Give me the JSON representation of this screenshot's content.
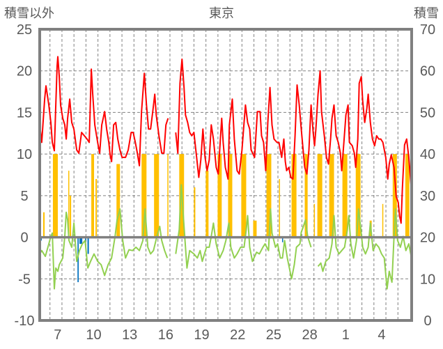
{
  "chart_data": {
    "type": "line",
    "title": "東京",
    "ylabel_left": "積雪以外",
    "ylabel_right": "積雪",
    "ylim_left": [
      -10,
      25
    ],
    "yticks_left": [
      25,
      20,
      15,
      10,
      5,
      0,
      -5,
      -10
    ],
    "ylim_right": [
      0,
      70
    ],
    "yticks_right": [
      70,
      60,
      50,
      40,
      30,
      20,
      10,
      0
    ],
    "x_unit": "days since Dec 6 00:00",
    "xlim": [
      0,
      31
    ],
    "xtick_labels": [
      {
        "day": 1.5,
        "label": "7"
      },
      {
        "day": 4.5,
        "label": "10"
      },
      {
        "day": 7.5,
        "label": "13"
      },
      {
        "day": 10.5,
        "label": "16"
      },
      {
        "day": 13.5,
        "label": "19"
      },
      {
        "day": 16.5,
        "label": "22"
      },
      {
        "day": 19.5,
        "label": "25"
      },
      {
        "day": 22.5,
        "label": "28"
      },
      {
        "day": 25.5,
        "label": "1"
      },
      {
        "day": 28.5,
        "label": "4"
      }
    ],
    "grid": true,
    "colors": {
      "red_series": "#ff0000",
      "green_series": "#92d050",
      "orange_bars": "#ffc000",
      "blue_bars": "#0070c0",
      "purple_series": "#7030a0",
      "frame": "#808080"
    },
    "red_series": [
      [
        0,
        13.6
      ],
      [
        0.17,
        11.4
      ],
      [
        0.41,
        16.6
      ],
      [
        0.52,
        18.2
      ],
      [
        0.76,
        15.9
      ],
      [
        0.93,
        13.8
      ],
      [
        1.05,
        11.4
      ],
      [
        1.22,
        10.4
      ],
      [
        1.34,
        15.9
      ],
      [
        1.45,
        20.6
      ],
      [
        1.51,
        21.7
      ],
      [
        1.63,
        19.3
      ],
      [
        1.74,
        15.9
      ],
      [
        1.92,
        14.3
      ],
      [
        2.09,
        13.5
      ],
      [
        2.21,
        11.8
      ],
      [
        2.33,
        14.3
      ],
      [
        2.5,
        16.6
      ],
      [
        2.67,
        13.8
      ],
      [
        2.85,
        13.0
      ],
      [
        3.08,
        10.5
      ],
      [
        3.26,
        10.1
      ],
      [
        3.49,
        12.6
      ],
      [
        3.72,
        12.2
      ],
      [
        3.95,
        11.8
      ],
      [
        4.13,
        11.4
      ],
      [
        4.3,
        20.2
      ],
      [
        4.42,
        17.2
      ],
      [
        4.59,
        13.5
      ],
      [
        4.83,
        11.4
      ],
      [
        5.0,
        10.1
      ],
      [
        5.17,
        13.5
      ],
      [
        5.41,
        15.1
      ],
      [
        5.58,
        13.0
      ],
      [
        5.76,
        11.4
      ],
      [
        5.87,
        9.9
      ],
      [
        5.99,
        9.1
      ],
      [
        6.16,
        13.5
      ],
      [
        6.34,
        13.8
      ],
      [
        6.51,
        11.8
      ],
      [
        6.69,
        10.5
      ],
      [
        6.86,
        9.6
      ],
      [
        7.15,
        9.6
      ],
      [
        7.38,
        10.5
      ],
      [
        7.62,
        12.6
      ],
      [
        7.79,
        12.6
      ],
      [
        7.97,
        11.4
      ],
      [
        8.14,
        10.1
      ],
      [
        8.31,
        8.6
      ],
      [
        8.49,
        15.1
      ],
      [
        8.72,
        19.7
      ],
      [
        8.9,
        15.9
      ],
      [
        9.07,
        13.0
      ],
      [
        9.24,
        13.0
      ],
      [
        9.42,
        15.1
      ],
      [
        9.59,
        17.2
      ],
      [
        9.71,
        14.7
      ],
      [
        9.94,
        12.2
      ],
      [
        10.17,
        10.1
      ],
      [
        10.35,
        10.1
      ],
      [
        10.52,
        13.5
      ],
      [
        10.7,
        14.3
      ],
      null,
      [
        11.34,
        12.6
      ],
      [
        11.51,
        10.1
      ],
      [
        11.69,
        18.5
      ],
      [
        11.86,
        21.4
      ],
      [
        12.03,
        18.0
      ],
      [
        12.15,
        14.7
      ],
      [
        12.33,
        13.8
      ],
      [
        12.5,
        12.6
      ],
      [
        12.67,
        12.2
      ],
      [
        12.85,
        12.6
      ],
      [
        13.08,
        9.6
      ],
      [
        13.26,
        7.2
      ],
      [
        13.43,
        9.3
      ],
      [
        13.6,
        13.0
      ],
      [
        13.78,
        9.6
      ],
      [
        13.95,
        8.0
      ],
      [
        14.13,
        9.3
      ],
      [
        14.3,
        13.5
      ],
      [
        14.48,
        11.8
      ],
      [
        14.71,
        8.4
      ],
      [
        14.88,
        7.6
      ],
      [
        15.06,
        11.8
      ],
      [
        15.17,
        14.3
      ],
      [
        15.29,
        11.4
      ],
      [
        15.47,
        8.4
      ],
      [
        15.7,
        7.0
      ],
      [
        15.81,
        13.5
      ],
      [
        16.05,
        16.6
      ],
      [
        16.22,
        11.8
      ],
      [
        16.45,
        8.0
      ],
      [
        16.63,
        7.6
      ],
      [
        16.86,
        10.5
      ],
      [
        17.03,
        13.8
      ],
      [
        17.15,
        15.9
      ],
      [
        17.33,
        13.8
      ],
      [
        17.5,
        13.0
      ],
      [
        17.62,
        10.5
      ],
      [
        17.91,
        9.6
      ],
      [
        18.14,
        15.1
      ],
      [
        18.37,
        15.1
      ],
      [
        18.49,
        12.2
      ],
      [
        18.66,
        11.4
      ],
      [
        18.84,
        8.0
      ],
      [
        19.01,
        13.8
      ],
      [
        19.19,
        18.0
      ],
      [
        19.36,
        13.5
      ],
      [
        19.53,
        11.8
      ],
      [
        19.77,
        11.4
      ],
      [
        19.94,
        11.4
      ],
      [
        20.17,
        9.6
      ],
      [
        20.35,
        11.8
      ],
      [
        20.47,
        9.1
      ],
      [
        20.58,
        8.0
      ],
      [
        20.76,
        8.4
      ],
      [
        20.93,
        7.2
      ],
      [
        21.1,
        7.0
      ],
      [
        21.28,
        12.2
      ],
      [
        21.45,
        18.3
      ],
      [
        21.63,
        15.9
      ],
      [
        21.8,
        13.0
      ],
      [
        21.98,
        10.1
      ],
      [
        22.09,
        8.4
      ],
      [
        22.27,
        7.6
      ],
      [
        22.44,
        10.5
      ],
      [
        22.62,
        15.9
      ],
      [
        22.79,
        12.6
      ],
      [
        22.91,
        11.0
      ],
      [
        23.02,
        13.0
      ],
      [
        23.2,
        17.2
      ],
      [
        23.37,
        20.0
      ],
      [
        23.49,
        15.1
      ],
      [
        23.72,
        12.2
      ],
      [
        23.9,
        9.6
      ],
      [
        24.07,
        8.8
      ],
      [
        24.24,
        11.8
      ],
      [
        24.36,
        14.3
      ],
      [
        24.53,
        15.9
      ],
      [
        24.71,
        12.2
      ],
      [
        24.88,
        11.4
      ],
      [
        25.06,
        10.1
      ],
      [
        25.17,
        8.0
      ],
      [
        25.35,
        11.4
      ],
      [
        25.52,
        14.7
      ],
      [
        25.7,
        15.9
      ],
      [
        25.81,
        11.4
      ],
      [
        26.05,
        11.0
      ],
      [
        26.22,
        10.1
      ],
      [
        26.34,
        8.4
      ],
      [
        26.51,
        11.8
      ],
      [
        26.63,
        18.5
      ],
      [
        26.8,
        19.3
      ],
      [
        26.92,
        16.4
      ],
      [
        27.09,
        13.8
      ],
      [
        27.27,
        15.5
      ],
      [
        27.38,
        17.2
      ],
      [
        27.56,
        13.8
      ],
      [
        27.73,
        11.8
      ],
      [
        27.91,
        11.0
      ],
      [
        28.08,
        12.2
      ],
      [
        28.26,
        11.8
      ],
      [
        28.43,
        11.8
      ],
      [
        28.6,
        11.4
      ],
      [
        28.84,
        9.6
      ],
      [
        29.01,
        7.0
      ],
      [
        29.13,
        8.8
      ],
      [
        29.3,
        9.9
      ],
      [
        29.53,
        8.4
      ],
      [
        29.71,
        4.9
      ],
      [
        29.88,
        4.2
      ],
      [
        30.0,
        2.5
      ],
      [
        30.12,
        1.7
      ],
      [
        30.23,
        5.9
      ],
      [
        30.41,
        11.1
      ],
      [
        30.58,
        11.8
      ],
      [
        30.76,
        9.6
      ],
      [
        30.99,
        5.5
      ]
    ],
    "green_series": [
      [
        0,
        -2.0
      ],
      [
        0.17,
        -1.6
      ],
      [
        0.47,
        -2.3
      ],
      [
        0.76,
        -0.8
      ],
      [
        0.93,
        0.1
      ],
      [
        1.05,
        0.5
      ],
      [
        1.22,
        -6.2
      ],
      [
        1.34,
        -3.7
      ],
      [
        1.51,
        -4.1
      ],
      [
        1.63,
        -3.3
      ],
      [
        1.92,
        -2.5
      ],
      [
        2.09,
        0.1
      ],
      [
        2.21,
        3.0
      ],
      [
        2.33,
        2.1
      ],
      [
        2.44,
        -0.4
      ],
      [
        2.67,
        -1.2
      ],
      [
        2.85,
        1.7
      ],
      [
        3.08,
        -2.9
      ],
      [
        3.31,
        -1.6
      ],
      [
        3.55,
        -0.8
      ],
      [
        3.78,
        -0.4
      ],
      [
        4.01,
        -3.7
      ],
      [
        4.24,
        -2.9
      ],
      [
        4.53,
        -2.0
      ],
      [
        4.83,
        -2.9
      ],
      [
        5.12,
        -3.3
      ],
      [
        5.41,
        -4.6
      ],
      [
        5.7,
        -3.3
      ],
      [
        5.99,
        -2.5
      ],
      [
        6.28,
        0.1
      ],
      [
        6.45,
        2.1
      ],
      [
        6.69,
        3.4
      ],
      [
        6.92,
        -0.4
      ],
      [
        7.15,
        -2.5
      ],
      [
        7.44,
        -1.5
      ],
      [
        7.73,
        -1.6
      ],
      [
        8.02,
        -1.2
      ],
      [
        8.31,
        -1.6
      ],
      [
        8.6,
        -0.4
      ],
      [
        8.78,
        3.4
      ],
      [
        9.01,
        -1.2
      ],
      [
        9.24,
        -2.0
      ],
      [
        9.48,
        -1.6
      ],
      [
        9.77,
        0.1
      ],
      [
        10.0,
        1.3
      ],
      [
        10.17,
        -0.4
      ],
      [
        10.41,
        -1.6
      ],
      [
        10.64,
        -2.5
      ],
      null,
      [
        11.34,
        -2.0
      ],
      [
        11.63,
        0.9
      ],
      [
        11.8,
        6.3
      ],
      [
        12.03,
        1.3
      ],
      [
        12.27,
        -3.7
      ],
      [
        12.5,
        -1.6
      ],
      [
        12.85,
        -2.0
      ],
      [
        13.14,
        -2.5
      ],
      [
        13.37,
        -1.6
      ],
      [
        13.55,
        -2.9
      ],
      [
        13.9,
        -1.2
      ],
      [
        14.13,
        -1.2
      ],
      [
        14.3,
        0.1
      ],
      [
        14.48,
        1.7
      ],
      [
        14.71,
        -0.8
      ],
      [
        15.0,
        -2.5
      ],
      [
        15.29,
        -1.6
      ],
      [
        15.52,
        -0.4
      ],
      [
        15.76,
        1.7
      ],
      [
        15.93,
        -1.2
      ],
      [
        16.22,
        -2.5
      ],
      [
        16.45,
        -2.0
      ],
      [
        16.74,
        -1.2
      ],
      [
        17.03,
        -1.2
      ],
      [
        17.21,
        0.9
      ],
      [
        17.33,
        2.6
      ],
      [
        17.5,
        -1.2
      ],
      [
        17.73,
        -2.9
      ],
      [
        18.08,
        -1.8
      ],
      [
        18.31,
        -2.0
      ],
      [
        18.6,
        -1.2
      ],
      [
        18.78,
        -0.8
      ],
      [
        19.07,
        -1.6
      ],
      [
        19.24,
        3.4
      ],
      [
        19.36,
        0.5
      ],
      [
        19.65,
        -1.2
      ],
      [
        19.83,
        -0.8
      ],
      [
        20.06,
        -2.5
      ],
      [
        20.23,
        -2.5
      ],
      [
        20.41,
        -0.4
      ],
      [
        20.64,
        -2.5
      ],
      [
        20.99,
        -5.0
      ],
      [
        21.22,
        -3.3
      ],
      [
        21.4,
        -1.2
      ],
      [
        21.69,
        -0.8
      ],
      [
        21.8,
        0.6
      ],
      [
        21.98,
        1.3
      ],
      [
        22.15,
        2.1
      ],
      [
        22.33,
        0.1
      ],
      [
        22.62,
        -1.2
      ],
      null,
      [
        23.2,
        -3.5
      ],
      [
        23.43,
        -3.1
      ],
      [
        23.6,
        -4.1
      ],
      [
        23.84,
        -2.9
      ],
      [
        24.13,
        -2.5
      ],
      [
        24.36,
        -0.8
      ],
      [
        24.53,
        2.6
      ],
      [
        24.71,
        -1.2
      ],
      [
        24.94,
        -2.0
      ],
      [
        25.17,
        -1.6
      ],
      [
        25.41,
        -1.2
      ],
      [
        25.64,
        0.9
      ],
      [
        25.76,
        2.6
      ],
      [
        25.93,
        -0.8
      ],
      [
        26.16,
        -2.5
      ],
      [
        26.4,
        -0.4
      ],
      [
        26.57,
        3.4
      ],
      [
        26.74,
        1.3
      ],
      [
        26.92,
        -1.2
      ],
      [
        27.15,
        -2.0
      ],
      [
        27.38,
        -1.2
      ],
      [
        27.56,
        1.7
      ],
      [
        27.79,
        -1.6
      ],
      [
        28.02,
        -0.8
      ],
      [
        28.26,
        -1.2
      ],
      [
        28.49,
        -2.0
      ],
      [
        28.72,
        -2.5
      ],
      [
        28.95,
        -6.2
      ],
      [
        29.13,
        -4.1
      ],
      [
        29.36,
        -5.4
      ],
      [
        29.53,
        0.1
      ],
      [
        29.65,
        3.4
      ],
      [
        29.83,
        -0.4
      ],
      [
        30.06,
        -1.2
      ],
      [
        30.29,
        0.1
      ],
      [
        30.52,
        -1.6
      ],
      [
        30.76,
        -0.8
      ],
      [
        30.99,
        -2.5
      ]
    ],
    "orange_bars": [
      [
        0.29,
        0.41,
        3
      ],
      [
        1.1,
        1.51,
        10
      ],
      [
        2.38,
        2.44,
        8
      ],
      [
        2.5,
        2.62,
        5
      ],
      [
        4.3,
        4.53,
        10
      ],
      [
        4.65,
        4.77,
        7
      ],
      [
        6.4,
        6.69,
        8.8
      ],
      [
        8.49,
        8.9,
        10
      ],
      [
        9.53,
        9.94,
        10
      ],
      [
        10.64,
        10.7,
        10
      ],
      [
        11.63,
        12.03,
        10
      ],
      [
        12.85,
        12.97,
        6
      ],
      [
        13.84,
        14.07,
        8
      ],
      [
        14.83,
        15.17,
        10
      ],
      [
        15.7,
        16.05,
        10
      ],
      [
        16.8,
        17.21,
        10
      ],
      [
        17.79,
        18.08,
        2
      ],
      [
        18.9,
        19.3,
        10
      ],
      [
        19.94,
        20.0,
        7
      ],
      [
        20.99,
        21.4,
        10
      ],
      [
        22.09,
        22.33,
        10
      ],
      [
        22.85,
        22.91,
        4
      ],
      [
        23.14,
        23.55,
        10
      ],
      [
        24.13,
        24.53,
        10
      ],
      [
        25.23,
        25.64,
        10
      ],
      [
        26.34,
        26.74,
        10
      ],
      [
        27.5,
        27.67,
        2
      ],
      [
        28.55,
        28.6,
        4
      ],
      [
        29.42,
        29.77,
        10
      ],
      [
        30.47,
        30.81,
        10
      ]
    ],
    "blue_bars": [
      [
        0,
        0.17,
        -0.4
      ],
      [
        3.15,
        3.25,
        -5.4
      ],
      [
        3.31,
        3.55,
        -0.8
      ],
      [
        3.78,
        3.84,
        -0.8
      ],
      [
        3.98,
        4.1,
        -2.0
      ],
      [
        20.2,
        20.26,
        -0.6
      ]
    ],
    "purple_series_right_axis": [
      [
        26.45,
        0
      ],
      [
        31,
        0
      ]
    ]
  }
}
